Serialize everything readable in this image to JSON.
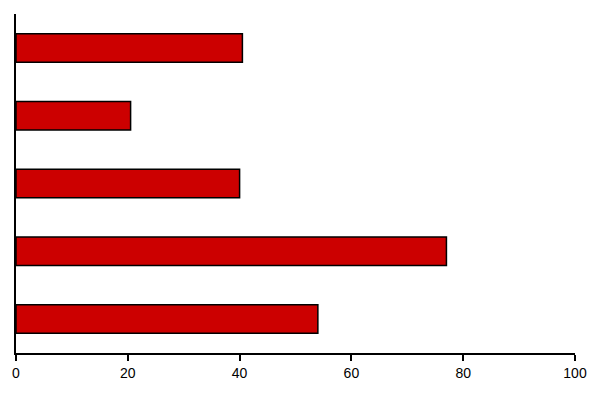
{
  "chart_data": {
    "type": "bar",
    "orientation": "horizontal",
    "categories": [
      null,
      null,
      null,
      null,
      null
    ],
    "values": [
      40.5,
      20.5,
      40,
      77,
      54
    ],
    "color": "#cc0000",
    "xlim": [
      0,
      100
    ],
    "xticks": [
      0,
      20,
      40,
      60,
      80,
      100
    ],
    "grid": false,
    "tick_labels": "x"
  }
}
